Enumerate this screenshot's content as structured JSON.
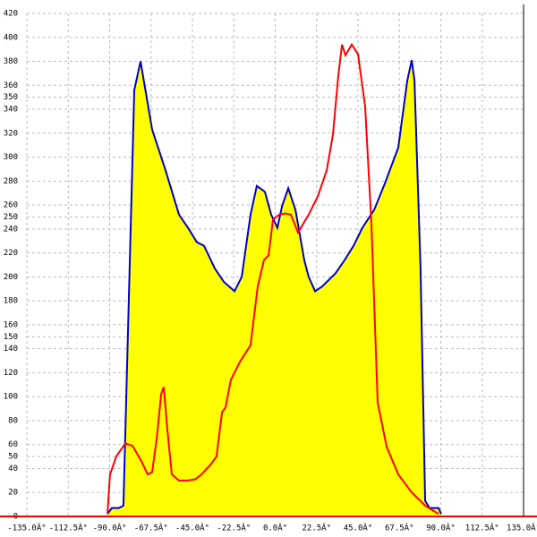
{
  "chart_data": {
    "type": "area-line",
    "xlim": [
      -135,
      135
    ],
    "ylim": [
      0,
      420
    ],
    "xticks": [
      {
        "value": -135,
        "label": "-135.0Â°"
      },
      {
        "value": -112.5,
        "label": "-112.5Â°"
      },
      {
        "value": -90,
        "label": "-90.0Â°"
      },
      {
        "value": -67.5,
        "label": "-67.5Â°"
      },
      {
        "value": -45,
        "label": "-45.0Â°"
      },
      {
        "value": -22.5,
        "label": "-22.5Â°"
      },
      {
        "value": 0,
        "label": "0.0Â°"
      },
      {
        "value": 22.5,
        "label": "22.5Â°"
      },
      {
        "value": 45,
        "label": "45.0Â°"
      },
      {
        "value": 67.5,
        "label": "67.5Â°"
      },
      {
        "value": 90,
        "label": "90.0Â°"
      },
      {
        "value": 112.5,
        "label": "112.5Â°"
      },
      {
        "value": 135,
        "label": "135.0Â°"
      }
    ],
    "yticks": [
      0,
      20,
      40,
      50,
      60,
      80,
      100,
      120,
      140,
      150,
      160,
      180,
      200,
      220,
      240,
      250,
      260,
      280,
      300,
      320,
      340,
      350,
      360,
      380,
      400,
      420
    ],
    "grid": true,
    "series": [
      {
        "color": "#0000cc",
        "fill": "#ffff00",
        "x": [
          -91.2,
          -88.8,
          -84.9,
          -82.5,
          -76.6,
          -73.2,
          -66.9,
          -59.6,
          -52.3,
          -47.4,
          -42.6,
          -38.7,
          -32.8,
          -28,
          -22.1,
          -18.2,
          -13.4,
          -10,
          -5.6,
          -2.2,
          1.2,
          3.7,
          7.1,
          11,
          15.8,
          18.2,
          21.7,
          25.5,
          32.8,
          37.7,
          42.6,
          47.4,
          53.8,
          59.6,
          66.9,
          71.8,
          74.2,
          75.7,
          79,
          81.5,
          83.9,
          88.8,
          90.2
        ],
        "values": [
          2,
          7,
          7,
          9,
          356,
          380,
          323,
          289,
          252,
          241,
          229,
          226,
          207,
          196,
          188,
          200,
          252,
          276,
          271,
          252,
          241,
          259,
          274,
          256,
          214,
          200,
          188,
          192,
          203,
          214,
          226,
          241,
          256,
          278,
          308,
          364,
          381,
          364,
          207,
          13,
          7,
          7,
          2
        ]
      },
      {
        "color": "#ff0000",
        "x": [
          -91.2,
          -89.8,
          -86.4,
          -81.5,
          -77.6,
          -72.7,
          -69.3,
          -66.9,
          -64.4,
          -62,
          -60.6,
          -58.6,
          -56.2,
          -52.3,
          -47.4,
          -43.5,
          -40.1,
          -35.3,
          -31.9,
          -28.9,
          -27,
          -24.1,
          -19.2,
          -13.4,
          -9.5,
          -6.1,
          -3.6,
          -1.2,
          2.2,
          5.2,
          8.5,
          12.4,
          18.2,
          23.1,
          28,
          31.4,
          34.3,
          36.3,
          38.2,
          41.6,
          45,
          48.9,
          52.3,
          55.7,
          60.6,
          66.9,
          74.2,
          81.5,
          88.8
        ],
        "values": [
          2,
          35,
          50,
          61,
          59,
          46,
          35,
          37,
          65,
          102,
          108,
          72,
          35,
          30,
          30,
          31,
          35,
          43,
          50,
          87,
          91,
          114,
          129,
          143,
          192,
          214,
          218,
          248,
          252,
          253,
          252,
          237,
          252,
          267,
          289,
          319,
          368,
          394,
          385,
          394,
          386,
          342,
          244,
          95,
          58,
          35,
          20,
          9,
          2
        ]
      }
    ]
  }
}
